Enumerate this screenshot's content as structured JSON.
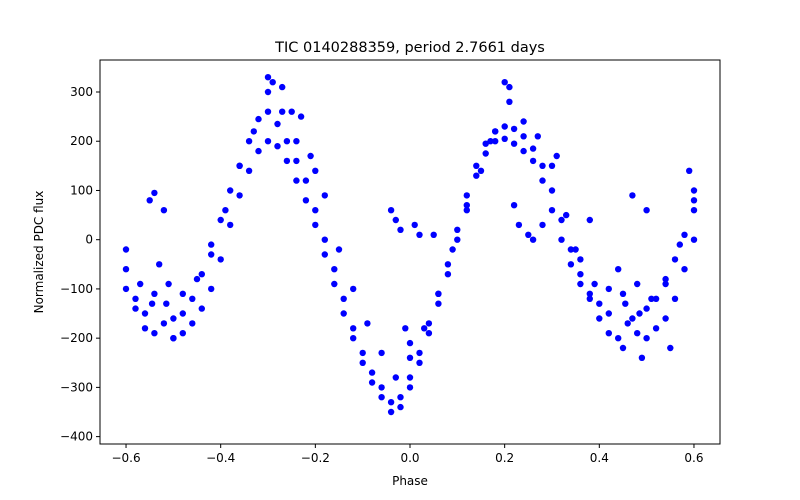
{
  "chart_data": {
    "type": "scatter",
    "title": "TIC 0140288359, period 2.7661 days",
    "xlabel": "Phase",
    "ylabel": "Normalized PDC flux",
    "xlim": [
      -0.655,
      0.655
    ],
    "ylim": [
      -415,
      365
    ],
    "xticks": [
      -0.6,
      -0.4,
      -0.2,
      0.0,
      0.2,
      0.4,
      0.6
    ],
    "xtick_labels": [
      "−0.6",
      "−0.4",
      "−0.2",
      "0.0",
      "0.2",
      "0.4",
      "0.6"
    ],
    "yticks": [
      -400,
      -300,
      -200,
      -100,
      0,
      100,
      200,
      300
    ],
    "ytick_labels": [
      "−400",
      "−300",
      "−200",
      "−100",
      "0",
      "100",
      "200",
      "300"
    ],
    "grid": false,
    "marker_color": "#0000ff",
    "series": [
      {
        "x": [
          -0.6,
          -0.58,
          -0.56,
          -0.545,
          -0.53,
          -0.515,
          -0.5,
          -0.48,
          -0.46,
          -0.44,
          -0.42,
          -0.4,
          -0.38,
          -0.36,
          -0.34,
          -0.32,
          -0.3,
          -0.28,
          -0.26,
          -0.24,
          -0.22,
          -0.2,
          -0.18,
          -0.16,
          -0.14,
          -0.12,
          -0.1,
          -0.08,
          -0.06,
          -0.04,
          -0.02,
          0.0,
          0.02,
          0.04,
          0.06,
          0.08,
          0.1,
          0.12,
          0.14,
          0.16,
          0.18,
          0.2,
          0.22,
          0.24,
          0.26,
          0.28,
          0.3,
          0.32,
          0.34,
          0.36,
          0.38,
          0.4,
          0.42,
          0.44,
          0.455,
          0.47,
          0.485,
          0.5,
          0.52,
          0.54,
          0.56,
          0.58,
          0.6
        ],
        "y": [
          -60,
          -120,
          -150,
          -130,
          -50,
          -130,
          -160,
          -150,
          -120,
          -70,
          -10,
          40,
          100,
          150,
          200,
          245,
          260,
          235,
          200,
          160,
          120,
          60,
          0,
          -60,
          -120,
          -180,
          -230,
          -270,
          -300,
          -330,
          -320,
          -280,
          -230,
          -170,
          -110,
          -50,
          20,
          90,
          150,
          195,
          220,
          230,
          225,
          210,
          185,
          150,
          100,
          40,
          -20,
          -70,
          -110,
          -130,
          -150,
          -60,
          -130,
          -160,
          -150,
          -140,
          -120,
          -90,
          -40,
          10,
          60
        ]
      },
      {
        "x": [
          -0.6,
          -0.58,
          -0.56,
          -0.54,
          -0.52,
          -0.5,
          -0.48,
          -0.46,
          -0.44,
          -0.42,
          -0.4,
          -0.38,
          -0.36,
          -0.34,
          -0.32,
          -0.3,
          -0.28,
          -0.26,
          -0.24,
          -0.22,
          -0.2,
          -0.18,
          -0.16,
          -0.14,
          -0.12,
          -0.1,
          -0.08,
          -0.06,
          -0.04,
          -0.02,
          0.0,
          0.02,
          0.04,
          0.06,
          0.08,
          0.1,
          0.12,
          0.14,
          0.16,
          0.18,
          0.2,
          0.22,
          0.24,
          0.26,
          0.28,
          0.3,
          0.32,
          0.34,
          0.36,
          0.38,
          0.4,
          0.42,
          0.44,
          0.46,
          0.48,
          0.5,
          0.52,
          0.54,
          0.56,
          0.58,
          0.6
        ],
        "y": [
          -100,
          -140,
          -180,
          -190,
          -170,
          -200,
          -190,
          -170,
          -140,
          -100,
          -40,
          30,
          90,
          140,
          180,
          200,
          190,
          160,
          120,
          80,
          30,
          -30,
          -90,
          -150,
          -200,
          -250,
          -290,
          -320,
          -350,
          -340,
          -300,
          -250,
          -190,
          -130,
          -70,
          0,
          70,
          130,
          175,
          200,
          205,
          195,
          180,
          160,
          120,
          60,
          0,
          -50,
          -90,
          -120,
          -160,
          -190,
          -200,
          -170,
          -190,
          -200,
          -180,
          -160,
          -120,
          -60,
          0
        ]
      },
      {
        "x": [
          -0.6,
          -0.57,
          -0.54,
          -0.51,
          -0.48,
          -0.45,
          -0.42,
          -0.39,
          -0.36,
          -0.33,
          -0.3,
          -0.27,
          -0.24,
          -0.21,
          -0.18,
          -0.15,
          -0.12,
          -0.09,
          -0.06,
          -0.03,
          0.0,
          0.03,
          0.06,
          0.09,
          0.12,
          0.15,
          0.18,
          0.21,
          0.24,
          0.27,
          0.3,
          0.33,
          0.36,
          0.39,
          0.42,
          0.45,
          0.48,
          0.51,
          0.54,
          0.57,
          0.6
        ],
        "y": [
          -20,
          -90,
          -110,
          -90,
          -110,
          -80,
          -30,
          60,
          150,
          220,
          300,
          260,
          200,
          170,
          90,
          -20,
          -100,
          -170,
          -230,
          -280,
          -240,
          -180,
          -110,
          -20,
          60,
          140,
          220,
          280,
          240,
          210,
          150,
          50,
          -40,
          -90,
          -100,
          -110,
          -90,
          -120,
          -80,
          -10,
          80
        ]
      },
      {
        "x": [
          -0.55,
          -0.54,
          -0.52,
          -0.5,
          -0.3,
          -0.29,
          -0.27,
          -0.25,
          -0.23,
          -0.2,
          -0.04,
          -0.03,
          -0.02,
          -0.01,
          0.0,
          0.01,
          0.02,
          0.05,
          0.17,
          0.2,
          0.21,
          0.22,
          0.23,
          0.25,
          0.26,
          0.28,
          0.31,
          0.35,
          0.38,
          0.45,
          0.47,
          0.49,
          0.5,
          0.55,
          0.59,
          0.6
        ],
        "y": [
          80,
          95,
          60,
          -200,
          330,
          320,
          310,
          260,
          250,
          140,
          60,
          40,
          20,
          -180,
          -210,
          30,
          10,
          10,
          200,
          320,
          310,
          70,
          30,
          10,
          0,
          30,
          170,
          -20,
          40,
          -220,
          90,
          -240,
          60,
          -220,
          140,
          100
        ]
      }
    ]
  }
}
